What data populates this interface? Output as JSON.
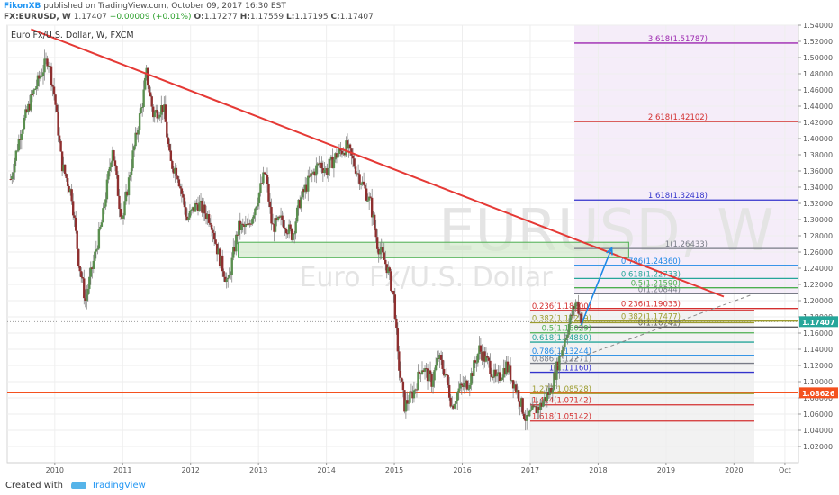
{
  "header": {
    "author": "FikonXB",
    "published_text": "published on TradingView.com, October 09, 2017 16:30 EST",
    "symbol": "FX:EURUSD, W",
    "last": "1.17407",
    "change": "+0.00009 (+0.01%)",
    "open_label": "O:",
    "open": "1.17277",
    "high_label": "H:",
    "high": "1.17559",
    "low_label": "L:",
    "low": "1.17195",
    "close_label": "C:",
    "close": "1.17407"
  },
  "footer": {
    "created_with": "Created with",
    "tradingview": "TradingView"
  },
  "chart_data": {
    "type": "candlestick",
    "title": "Euro Fx/U.S. Dollar, W, FXCM",
    "watermark_symbol": "EURUSD, W",
    "watermark_name": "Euro Fx/U.S. Dollar",
    "ylim": [
      1.0,
      1.54
    ],
    "xlim": [
      2009.3,
      2020.95
    ],
    "y_ticks": [
      "1.02000",
      "1.04000",
      "1.06000",
      "1.08000",
      "1.10000",
      "1.12000",
      "1.14000",
      "1.16000",
      "1.18000",
      "1.20000",
      "1.22000",
      "1.24000",
      "1.26000",
      "1.28000",
      "1.30000",
      "1.32000",
      "1.34000",
      "1.36000",
      "1.38000",
      "1.40000",
      "1.42000",
      "1.44000",
      "1.46000",
      "1.48000",
      "1.50000",
      "1.52000",
      "1.54000"
    ],
    "x_ticks": [
      {
        "label": "2010",
        "x": 2010.0
      },
      {
        "label": "2011",
        "x": 2011.0
      },
      {
        "label": "2012",
        "x": 2012.0
      },
      {
        "label": "2013",
        "x": 2013.0
      },
      {
        "label": "2014",
        "x": 2014.0
      },
      {
        "label": "2015",
        "x": 2015.0
      },
      {
        "label": "2016",
        "x": 2016.0
      },
      {
        "label": "2017",
        "x": 2017.0
      },
      {
        "label": "2018",
        "x": 2018.0
      },
      {
        "label": "2019",
        "x": 2019.0
      },
      {
        "label": "2020",
        "x": 2020.0
      },
      {
        "label": "Oct",
        "x": 2020.75
      }
    ],
    "price_path": [
      [
        2009.35,
        1.35
      ],
      [
        2009.5,
        1.41
      ],
      [
        2009.7,
        1.46
      ],
      [
        2009.9,
        1.5
      ],
      [
        2010.0,
        1.45
      ],
      [
        2010.1,
        1.37
      ],
      [
        2010.25,
        1.33
      ],
      [
        2010.35,
        1.25
      ],
      [
        2010.45,
        1.2
      ],
      [
        2010.55,
        1.24
      ],
      [
        2010.7,
        1.3
      ],
      [
        2010.85,
        1.39
      ],
      [
        2010.95,
        1.32
      ],
      [
        2011.0,
        1.3
      ],
      [
        2011.15,
        1.38
      ],
      [
        2011.3,
        1.45
      ],
      [
        2011.35,
        1.48
      ],
      [
        2011.45,
        1.43
      ],
      [
        2011.6,
        1.44
      ],
      [
        2011.7,
        1.37
      ],
      [
        2011.8,
        1.36
      ],
      [
        2011.95,
        1.3
      ],
      [
        2012.1,
        1.32
      ],
      [
        2012.3,
        1.3
      ],
      [
        2012.4,
        1.26
      ],
      [
        2012.55,
        1.22
      ],
      [
        2012.7,
        1.29
      ],
      [
        2012.85,
        1.29
      ],
      [
        2013.0,
        1.33
      ],
      [
        2013.1,
        1.36
      ],
      [
        2013.2,
        1.29
      ],
      [
        2013.35,
        1.3
      ],
      [
        2013.5,
        1.28
      ],
      [
        2013.6,
        1.32
      ],
      [
        2013.75,
        1.35
      ],
      [
        2013.9,
        1.37
      ],
      [
        2014.0,
        1.36
      ],
      [
        2014.15,
        1.38
      ],
      [
        2014.3,
        1.39
      ],
      [
        2014.45,
        1.36
      ],
      [
        2014.55,
        1.34
      ],
      [
        2014.65,
        1.32
      ],
      [
        2014.75,
        1.27
      ],
      [
        2014.9,
        1.24
      ],
      [
        2015.0,
        1.2
      ],
      [
        2015.05,
        1.13
      ],
      [
        2015.15,
        1.07
      ],
      [
        2015.3,
        1.09
      ],
      [
        2015.4,
        1.12
      ],
      [
        2015.55,
        1.1
      ],
      [
        2015.65,
        1.13
      ],
      [
        2015.75,
        1.11
      ],
      [
        2015.85,
        1.07
      ],
      [
        2015.95,
        1.09
      ],
      [
        2016.1,
        1.1
      ],
      [
        2016.25,
        1.14
      ],
      [
        2016.4,
        1.12
      ],
      [
        2016.5,
        1.1
      ],
      [
        2016.65,
        1.12
      ],
      [
        2016.8,
        1.09
      ],
      [
        2016.95,
        1.05
      ],
      [
        2017.0,
        1.06
      ],
      [
        2017.15,
        1.07
      ],
      [
        2017.3,
        1.09
      ],
      [
        2017.4,
        1.12
      ],
      [
        2017.5,
        1.15
      ],
      [
        2017.6,
        1.18
      ],
      [
        2017.68,
        1.2
      ],
      [
        2017.74,
        1.18
      ],
      [
        2017.78,
        1.17407
      ]
    ],
    "trendline": {
      "from": [
        2009.65,
        1.535
      ],
      "to": [
        2019.85,
        1.205
      ]
    },
    "zone_box": {
      "x1": 2012.7,
      "x2": 2018.45,
      "y1": 1.253,
      "y2": 1.272
    },
    "dashed_projection": {
      "from": [
        2017.4,
        1.12
      ],
      "to": [
        2020.25,
        1.207
      ]
    },
    "arrow_up": {
      "from": [
        2017.75,
        1.17
      ],
      "to": [
        2018.2,
        1.265
      ]
    },
    "fib_projection_upper": {
      "x1": 2017.65,
      "x2": 2020.95,
      "levels": [
        {
          "label": "0(1.20844)",
          "value": 1.20844,
          "color": "#787b86"
        },
        {
          "label": "0.236(1.19033)",
          "value": 1.19033,
          "color": "#d32f2f"
        },
        {
          "label": "0.382(1.17477)",
          "value": 1.17477,
          "color": "#9c9c2e"
        },
        {
          "label": "0(1.16741)",
          "value": 1.16741,
          "color": "#5b5b5b"
        },
        {
          "label": "0.5(1.21590)",
          "value": 1.2159,
          "color": "#4caf50"
        },
        {
          "label": "0.618(1.22733)",
          "value": 1.22733,
          "color": "#26a69a"
        },
        {
          "label": "0.786(1.24360)",
          "value": 1.2436,
          "color": "#1e88e5"
        },
        {
          "label": "1(1.26433)",
          "value": 1.26433,
          "color": "#787b86"
        },
        {
          "label": "1.618(1.32418)",
          "value": 1.32418,
          "color": "#3333cc"
        },
        {
          "label": "2.618(1.42102)",
          "value": 1.42102,
          "color": "#d32f2f"
        },
        {
          "label": "3.618(1.51787)",
          "value": 1.51787,
          "color": "#9c27b0"
        }
      ]
    },
    "fib_retracement_lower": {
      "x1": 2017.0,
      "x2": 2020.3,
      "levels": [
        {
          "label": "0.236(1.18800)",
          "value": 1.188,
          "color": "#d32f2f"
        },
        {
          "label": "0.382(1.17279)",
          "value": 1.17279,
          "color": "#9c9c2e"
        },
        {
          "label": "0.5(1.16029)",
          "value": 1.16029,
          "color": "#4caf50"
        },
        {
          "label": "0.618(1.14880)",
          "value": 1.1488,
          "color": "#26a69a"
        },
        {
          "label": "0.786(1.13244)",
          "value": 1.13244,
          "color": "#1e88e5"
        },
        {
          "label": "0.886(1.12271)",
          "value": 1.12271,
          "color": "#787b86"
        },
        {
          "label": "1(1.11160)",
          "value": 1.1116,
          "color": "#3333cc"
        },
        {
          "label": "1.272(1.08528)",
          "value": 1.08528,
          "color": "#9c9c2e"
        },
        {
          "label": "1.414(1.07142)",
          "value": 1.07142,
          "color": "#d32f2f"
        },
        {
          "label": "1.618(1.05142)",
          "value": 1.05142,
          "color": "#d32f2f"
        }
      ]
    },
    "horizontal_line": {
      "value": 1.08626,
      "label": "1.08626",
      "color": "#f4511e"
    },
    "current_price": {
      "value": 1.17407,
      "label": "1.17407",
      "color": "#26a69a"
    }
  }
}
